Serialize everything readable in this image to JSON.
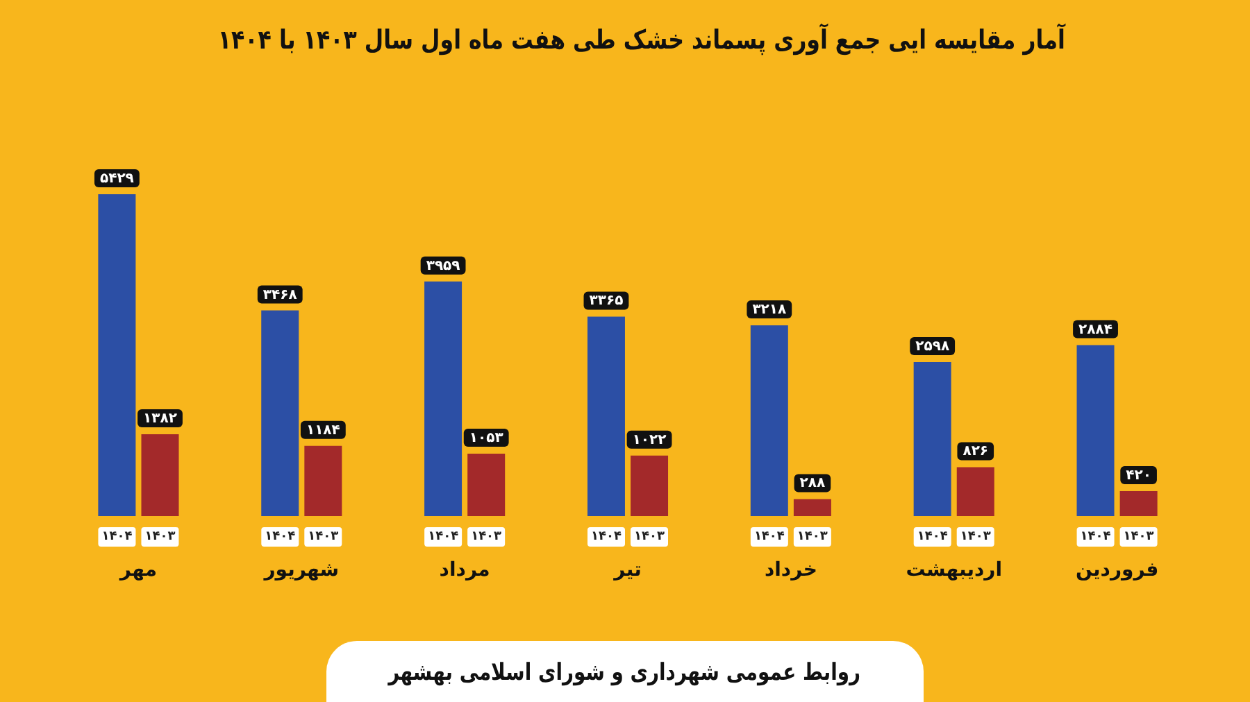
{
  "chart_data": {
    "type": "bar",
    "title": "آمار مقایسه ایی جمع آوری پسماند خشک طی هفت ماه اول سال ۱۴۰۳ با ۱۴۰۴",
    "categories": [
      "مهر",
      "شهریور",
      "مرداد",
      "تیر",
      "خرداد",
      "اردیبهشت",
      "فروردین"
    ],
    "series": [
      {
        "name": "۱۴۰۴",
        "color": "#2c4fa5",
        "values": [
          5429,
          3468,
          3959,
          3365,
          3218,
          2598,
          2884
        ],
        "value_labels": [
          "۵۴۲۹",
          "۳۴۶۸",
          "۳۹۵۹",
          "۳۳۶۵",
          "۳۲۱۸",
          "۲۵۹۸",
          "۲۸۸۴"
        ]
      },
      {
        "name": "۱۴۰۳",
        "color": "#a3292a",
        "values": [
          1382,
          1184,
          1053,
          1022,
          288,
          826,
          420
        ],
        "value_labels": [
          "۱۳۸۲",
          "۱۱۸۴",
          "۱۰۵۳",
          "۱۰۲۲",
          "۲۸۸",
          "۸۲۶",
          "۴۲۰"
        ]
      }
    ],
    "tick_labels": "x",
    "annotations": [
      "روابط عمومی شهرداری و شورای اسلامی بهشهر"
    ]
  }
}
